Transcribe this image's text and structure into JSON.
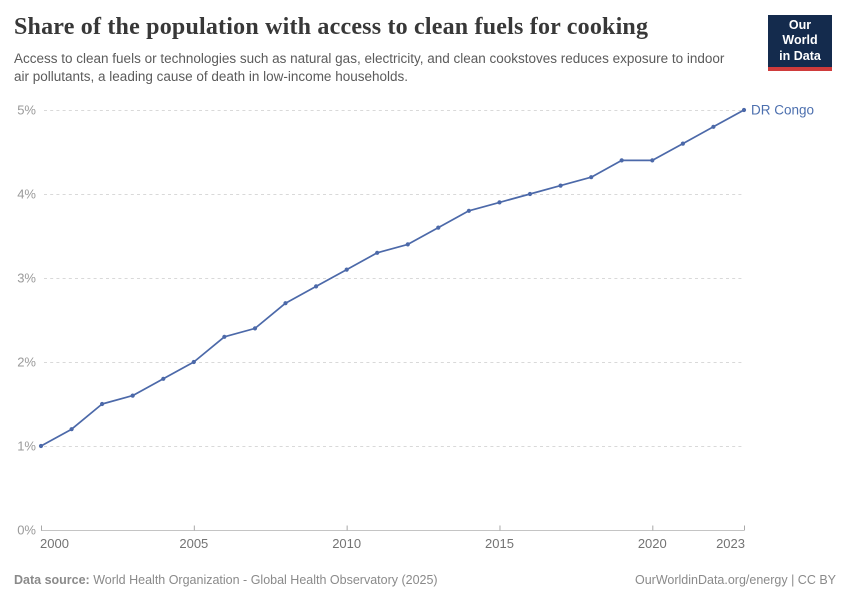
{
  "header": {
    "title": "Share of the population with access to clean fuels for cooking",
    "subtitle": "Access to clean fuels or technologies such as natural gas, electricity, and clean cookstoves reduces exposure to indoor air pollutants, a leading cause of death in low-income households.",
    "logo": {
      "line1": "Our World",
      "line2": "in Data"
    }
  },
  "footer": {
    "source_label": "Data source:",
    "source_text": "World Health Organization - Global Health Observatory (2025)",
    "right_text": "OurWorldinData.org/energy | CC BY"
  },
  "colors": {
    "accent_line": "#4c69a9",
    "series_label": "#4c6fae",
    "grid": "#d9d9d9",
    "axis": "#c4c4c4",
    "tick": "#a8a8a8",
    "y_label": "#9a9a9a",
    "x_label": "#737373",
    "title_text": "#383838",
    "subtitle_text": "#5b5b5b",
    "footer_text": "#8a8a8a",
    "logo_bg": "#142b4d",
    "logo_stripe": "#cf3b3b"
  },
  "chart_data": {
    "type": "line",
    "title": "Share of the population with access to clean fuels for cooking",
    "xlabel": "",
    "ylabel": "",
    "x_range": [
      2000,
      2023
    ],
    "ylim": [
      0,
      5
    ],
    "yticks": [
      0,
      1,
      2,
      3,
      4,
      5
    ],
    "ytick_labels": [
      "0%",
      "1%",
      "2%",
      "3%",
      "4%",
      "5%"
    ],
    "xticks": [
      2000,
      2005,
      2010,
      2015,
      2020,
      2023
    ],
    "xtick_labels": [
      "2000",
      "2005",
      "2010",
      "2015",
      "2020",
      "2023"
    ],
    "grid": "horizontal-dashed",
    "legend_position": "end-of-line-label",
    "series": [
      {
        "name": "DR Congo",
        "color": "#4c69a9",
        "x": [
          2000,
          2001,
          2002,
          2003,
          2004,
          2005,
          2006,
          2007,
          2008,
          2009,
          2010,
          2011,
          2012,
          2013,
          2014,
          2015,
          2016,
          2017,
          2018,
          2019,
          2020,
          2021,
          2022,
          2023
        ],
        "values": [
          1.0,
          1.2,
          1.5,
          1.6,
          1.8,
          2.0,
          2.3,
          2.4,
          2.7,
          2.9,
          3.1,
          3.3,
          3.4,
          3.6,
          3.8,
          3.9,
          4.0,
          4.1,
          4.2,
          4.4,
          4.4,
          4.6,
          4.8,
          5.0
        ]
      }
    ]
  }
}
